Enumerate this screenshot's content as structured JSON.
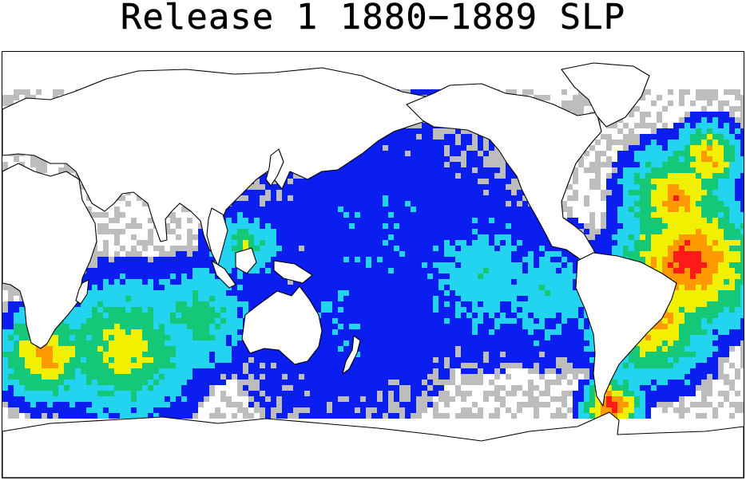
{
  "title": "Release 1 1880−1889 SLP",
  "colors": {
    "background": "#ffffff",
    "coastline": "#000000",
    "sparse": "#bdbdbd",
    "low": "#0a1ef0",
    "medium": "#22d4f0",
    "medium_high": "#14c878",
    "high": "#f0f000",
    "very_high": "#ff9900",
    "max": "#ff1a1a"
  }
}
